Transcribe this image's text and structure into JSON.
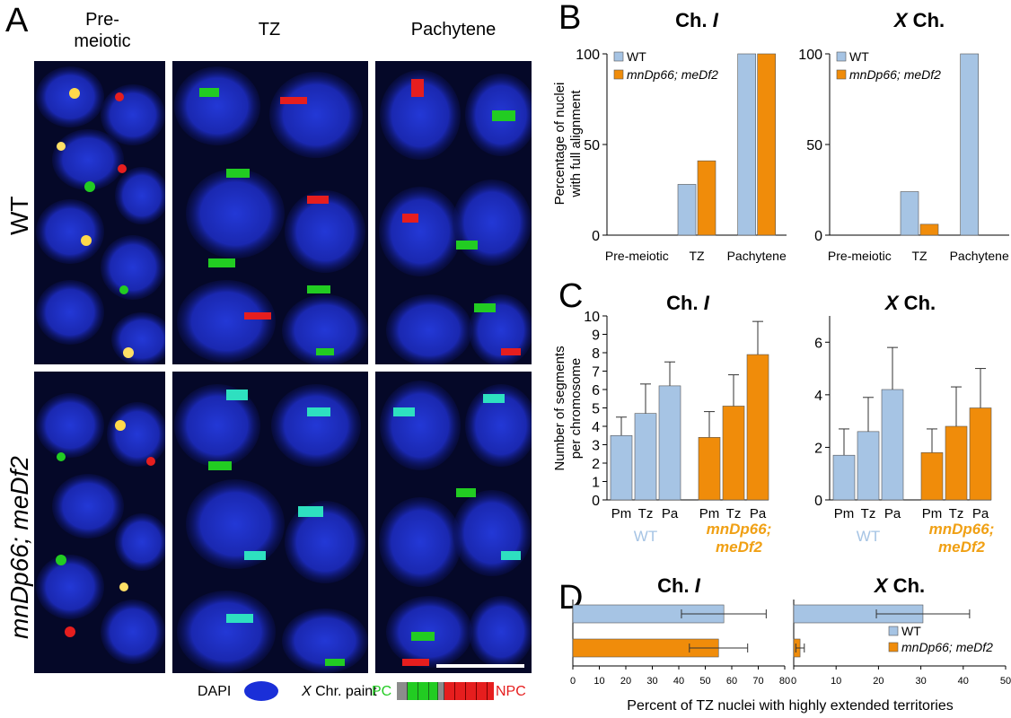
{
  "panelA": {
    "letter": "A",
    "col_heads": [
      "Pre-\nmeiotic",
      "TZ",
      "Pachytene"
    ],
    "row_heads": [
      "WT",
      "mnDp66; meDf2"
    ],
    "legend": {
      "dapi": "DAPI",
      "xchr": "X Chr. paint",
      "pc": "PC",
      "npc": "NPC",
      "dapi_color": "#1a2fd8",
      "pc_color": "#22cc22",
      "npc_color": "#e61e1e",
      "gray_color": "#8c8c8c"
    }
  },
  "colors": {
    "wt": "#a6c4e4",
    "mut": "#f08c0a",
    "mut_text": "#f0a014",
    "wt_text": "#a6c4e4"
  },
  "chart_data": [
    {
      "panel": "B",
      "type": "bar",
      "title": "Ch. I",
      "ylabel": "Percentage of nuclei with full alignment",
      "categories": [
        "Pre-meiotic",
        "TZ",
        "Pachytene"
      ],
      "series": [
        {
          "name": "WT",
          "values": [
            0,
            28,
            100
          ]
        },
        {
          "name": "mnDp66; meDf2",
          "values": [
            0,
            41,
            100
          ]
        }
      ],
      "ylim": [
        0,
        100
      ],
      "yticks": [
        0,
        50,
        100
      ],
      "legend": "top-left"
    },
    {
      "panel": "B",
      "type": "bar",
      "title": "X Ch.",
      "categories": [
        "Pre-meiotic",
        "TZ",
        "Pachytene"
      ],
      "series": [
        {
          "name": "WT",
          "values": [
            0,
            24,
            100
          ]
        },
        {
          "name": "mnDp66; meDf2",
          "values": [
            0,
            6,
            0
          ]
        }
      ],
      "ylim": [
        0,
        100
      ],
      "yticks": [
        0,
        50,
        100
      ],
      "legend": "top-left"
    },
    {
      "panel": "C",
      "type": "bar",
      "title": "Ch. I",
      "ylabel": "Number of segments per chromosome",
      "groups": [
        "WT",
        "mnDp66; meDf2"
      ],
      "categories": [
        "Pm",
        "Tz",
        "Pa"
      ],
      "series": [
        {
          "name": "WT",
          "values": [
            3.5,
            4.7,
            6.2
          ],
          "errors": [
            1.0,
            1.6,
            1.3
          ]
        },
        {
          "name": "mnDp66; meDf2",
          "values": [
            3.4,
            5.1,
            7.9
          ],
          "errors": [
            1.4,
            1.7,
            1.8
          ]
        }
      ],
      "ylim": [
        0,
        10
      ],
      "yticks": [
        0,
        1,
        2,
        3,
        4,
        5,
        6,
        7,
        8,
        9,
        10
      ]
    },
    {
      "panel": "C",
      "type": "bar",
      "title": "X Ch.",
      "groups": [
        "WT",
        "mnDp66; meDf2"
      ],
      "categories": [
        "Pm",
        "Tz",
        "Pa"
      ],
      "series": [
        {
          "name": "WT",
          "values": [
            1.7,
            2.6,
            4.2
          ],
          "errors": [
            1.0,
            1.3,
            1.6
          ]
        },
        {
          "name": "mnDp66; meDf2",
          "values": [
            1.8,
            2.8,
            3.5
          ],
          "errors": [
            0.9,
            1.5,
            1.5
          ]
        }
      ],
      "ylim": [
        0,
        7
      ],
      "yticks": [
        0,
        2,
        4,
        6
      ]
    },
    {
      "panel": "D",
      "type": "bar",
      "orientation": "horizontal",
      "title": "Ch. I",
      "series": [
        {
          "name": "WT",
          "values": [
            57
          ],
          "errors": [
            16
          ]
        },
        {
          "name": "mnDp66; meDf2",
          "values": [
            55
          ],
          "errors": [
            11
          ]
        }
      ],
      "xlim": [
        0,
        80
      ],
      "xticks": [
        0,
        10,
        20,
        30,
        40,
        50,
        60,
        70,
        80
      ]
    },
    {
      "panel": "D",
      "type": "bar",
      "orientation": "horizontal",
      "title": "X Ch.",
      "series": [
        {
          "name": "WT",
          "values": [
            30.5
          ],
          "errors": [
            11
          ]
        },
        {
          "name": "mnDp66; meDf2",
          "values": [
            1.5
          ],
          "errors": [
            1.0
          ]
        }
      ],
      "xlim": [
        0,
        50
      ],
      "xticks": [
        0,
        10,
        20,
        30,
        40,
        50
      ],
      "xlabel": "Percent of TZ nuclei with highly extended territories",
      "legend": "bottom-right"
    }
  ],
  "labels": {
    "B": "B",
    "C": "C",
    "D": "D",
    "ch_i": "Ch. ",
    "ch_i_italic": "I",
    "x_italic": "X",
    "x_ch": " Ch.",
    "wt": "WT",
    "mut": "mnDp66; meDf2",
    "mut_line1": "mnDp66;",
    "mut_line2": "meDf2",
    "b_ylabel_1": "Percentage of nuclei",
    "b_ylabel_2": "with full alignment",
    "c_ylabel_1": "Number of segments",
    "c_ylabel_2": "per chromosome",
    "d_xlabel": "Percent of TZ nuclei with highly extended territories"
  }
}
